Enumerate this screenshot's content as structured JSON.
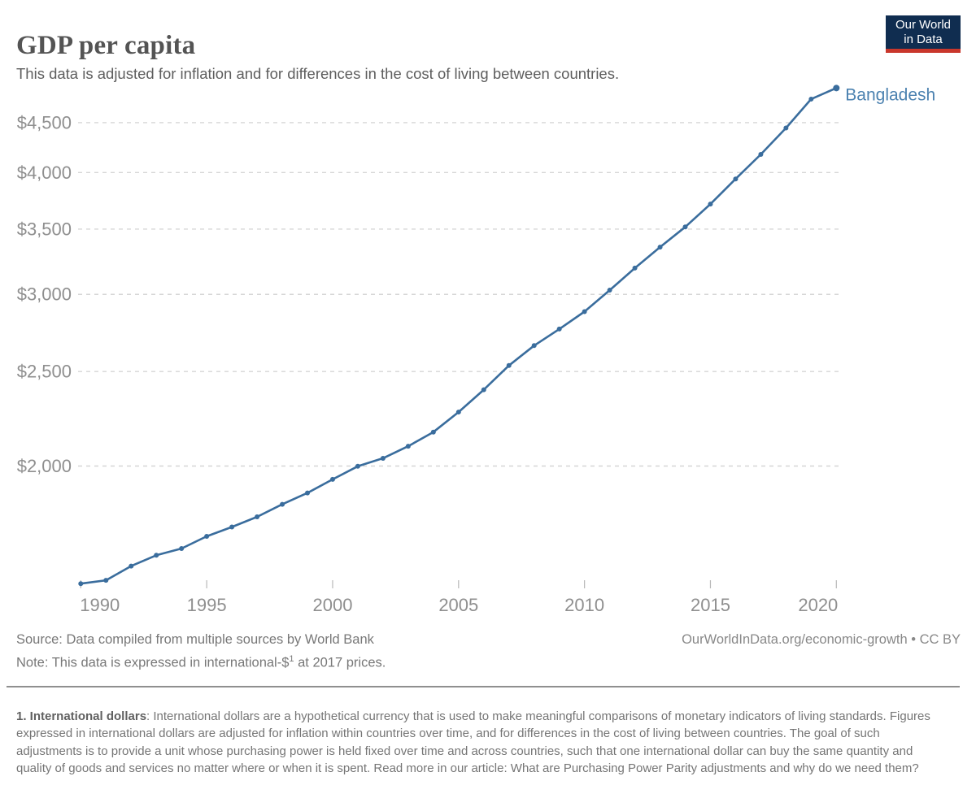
{
  "header": {
    "title": "GDP per capita",
    "subtitle": "This data is adjusted for inflation and for differences in the cost of living between countries."
  },
  "logo": {
    "line1": "Our World",
    "line2": "in Data",
    "bg_color": "#102d50",
    "bar_color": "#c9372c"
  },
  "chart_data": {
    "type": "line",
    "title": "GDP per capita",
    "y_scale": "log",
    "grid": "horizontal-dashed",
    "xlim": [
      1990,
      2020
    ],
    "ylim": [
      1480,
      4960
    ],
    "x_ticks": [
      1990,
      1995,
      2000,
      2005,
      2010,
      2015,
      2020
    ],
    "y_ticks": [
      2000,
      2500,
      3000,
      3500,
      4000,
      4500
    ],
    "y_tick_prefix": "$",
    "legend_position": "end-of-line-label",
    "series": [
      {
        "name": "Bangladesh",
        "color": "#3a6d9d",
        "label_color": "#4c82b0",
        "x": [
          1990,
          1991,
          1992,
          1993,
          1994,
          1995,
          1996,
          1997,
          1998,
          1999,
          2000,
          2001,
          2002,
          2003,
          2004,
          2005,
          2006,
          2007,
          2008,
          2009,
          2010,
          2011,
          2012,
          2013,
          2014,
          2015,
          2016,
          2017,
          2018,
          2019,
          2020
        ],
        "values": [
          1515,
          1527,
          1579,
          1620,
          1646,
          1694,
          1732,
          1774,
          1827,
          1877,
          1938,
          1999,
          2037,
          2096,
          2167,
          2272,
          2395,
          2536,
          2658,
          2764,
          2880,
          3030,
          3192,
          3354,
          3518,
          3713,
          3940,
          4175,
          4444,
          4758,
          4884
        ]
      }
    ]
  },
  "footer": {
    "source": "Source: Data compiled from multiple sources by World Bank",
    "note_prefix": "Note: This data is expressed in international-$",
    "note_sup": "1",
    "note_suffix": " at 2017 prices.",
    "link": "OurWorldInData.org/economic-growth • CC BY"
  },
  "footnote": {
    "term": "1. International dollars",
    "text": ": International dollars are a hypothetical currency that is used to make meaningful comparisons of monetary indicators of living standards. Figures expressed in international dollars are adjusted for inflation within countries over time, and for differences in the cost of living between countries. The goal of such adjustments is to provide a unit whose purchasing power is held fixed over time and across countries, such that one international dollar can buy the same quantity and quality of goods and services no matter where or when it is spent. Read more in our article: What are Purchasing Power Parity adjustments and why do we need them?"
  },
  "colors": {
    "grid": "#d6d6d6",
    "tick": "#b8b8b8",
    "axis_text": "#8f8f8f"
  }
}
